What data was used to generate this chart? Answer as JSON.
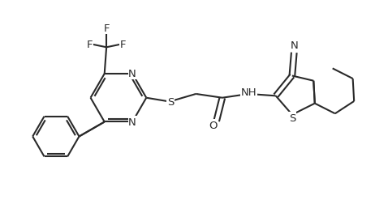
{
  "bg_color": "#ffffff",
  "line_color": "#2a2a2a",
  "text_color": "#2a2a2a",
  "lw": 1.5,
  "dbo": 0.07,
  "fs": 9.5,
  "figsize": [
    4.78,
    2.53
  ],
  "dpi": 100,
  "xlim": [
    0,
    10
  ],
  "ylim": [
    0,
    5.3
  ]
}
